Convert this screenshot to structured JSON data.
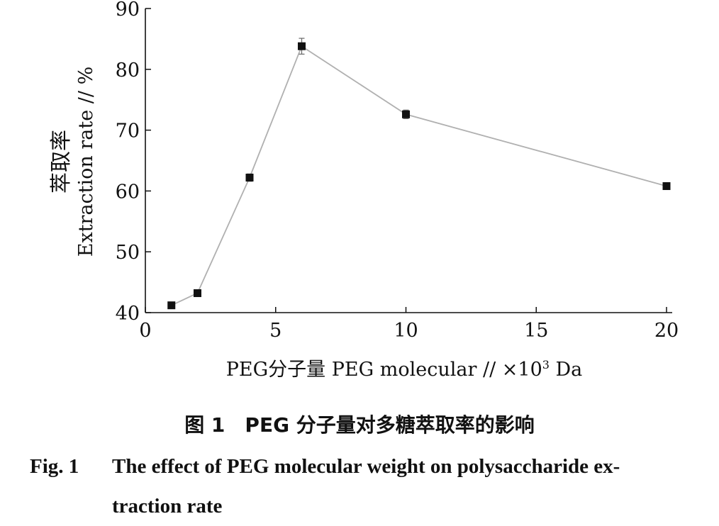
{
  "chart_data": {
    "type": "line",
    "ylabel_cn": "萃取率",
    "ylabel_en": "Extraction rate // %",
    "xlabel": "PEG分子量 PEG molecular // ×10",
    "xlabel_sup": "3",
    "xlabel_unit": " Da",
    "xlim": [
      0,
      20
    ],
    "ylim": [
      40,
      90
    ],
    "xticks": [
      0,
      5,
      10,
      15,
      20
    ],
    "yticks": [
      40,
      50,
      60,
      70,
      80,
      90
    ],
    "grid": false,
    "line_color": "#b0b0b0",
    "marker_color": "#111111",
    "series": [
      {
        "x": [
          1,
          2,
          4,
          6,
          10,
          20
        ],
        "y": [
          41.2,
          43.2,
          62.2,
          83.8,
          72.6,
          60.8
        ],
        "err": [
          0.3,
          0.4,
          0.6,
          1.3,
          0.7,
          0.3
        ]
      }
    ]
  },
  "caption": {
    "cn": "图 1　PEG 分子量对多糖萃取率的影响",
    "en_label": "Fig. 1",
    "en_line1": "The effect of PEG molecular weight on polysaccharide ex-",
    "en_line2": "traction rate"
  }
}
